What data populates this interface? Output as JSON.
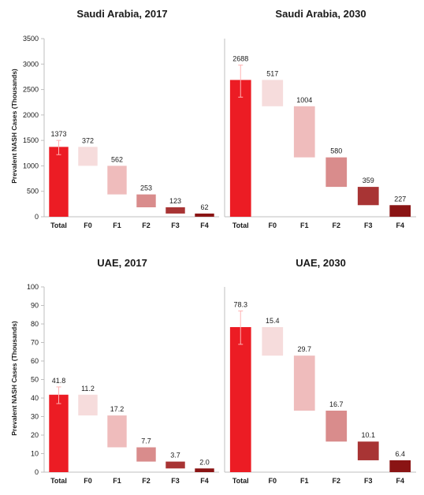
{
  "chart_data": [
    {
      "type": "bar",
      "title": "Saudi Arabia, 2017",
      "ylabel": "Prevalent NASH Cases (Thousands)",
      "ylim": [
        0,
        3500
      ],
      "yticks": [
        0,
        500,
        1000,
        1500,
        2000,
        2500,
        3000,
        3500
      ],
      "categories": [
        "Total",
        "F0",
        "F1",
        "F2",
        "F3",
        "F4"
      ],
      "values": [
        1373,
        372,
        562,
        253,
        123,
        62
      ],
      "value_labels": [
        "1373",
        "372",
        "562",
        "253",
        "123",
        "62"
      ],
      "error_bar_total": [
        1220,
        1500
      ],
      "colors": [
        "#ec1c24",
        "#f6dcdc",
        "#efbcbc",
        "#d98c8c",
        "#a83434",
        "#8a1414"
      ]
    },
    {
      "type": "bar",
      "title": "Saudi Arabia, 2030",
      "ylabel": "",
      "ylim": [
        0,
        3500
      ],
      "yticks": [],
      "categories": [
        "Total",
        "F0",
        "F1",
        "F2",
        "F3",
        "F4"
      ],
      "values": [
        2688,
        517,
        1004,
        580,
        359,
        227
      ],
      "value_labels": [
        "2688",
        "517",
        "1004",
        "580",
        "359",
        "227"
      ],
      "error_bar_total": [
        2350,
        2980
      ],
      "colors": [
        "#ec1c24",
        "#f6dcdc",
        "#efbcbc",
        "#d98c8c",
        "#a83434",
        "#8a1414"
      ]
    },
    {
      "type": "bar",
      "title": "UAE, 2017",
      "ylabel": "Prevalent NASH Cases (Thousands)",
      "ylim": [
        0,
        100
      ],
      "yticks": [
        0,
        10,
        20,
        30,
        40,
        50,
        60,
        70,
        80,
        90,
        100
      ],
      "categories": [
        "Total",
        "F0",
        "F1",
        "F2",
        "F3",
        "F4"
      ],
      "values": [
        41.8,
        11.2,
        17.2,
        7.7,
        3.7,
        2.0
      ],
      "value_labels": [
        "41.8",
        "11.2",
        "17.2",
        "7.7",
        "3.7",
        "2.0"
      ],
      "error_bar_total": [
        37,
        46
      ],
      "colors": [
        "#ec1c24",
        "#f6dcdc",
        "#efbcbc",
        "#d98c8c",
        "#a83434",
        "#8a1414"
      ]
    },
    {
      "type": "bar",
      "title": "UAE, 2030",
      "ylabel": "",
      "ylim": [
        0,
        100
      ],
      "yticks": [],
      "categories": [
        "Total",
        "F0",
        "F1",
        "F2",
        "F3",
        "F4"
      ],
      "values": [
        78.3,
        15.4,
        29.7,
        16.7,
        10.1,
        6.4
      ],
      "value_labels": [
        "78.3",
        "15.4",
        "29.7",
        "16.7",
        "10.1",
        "6.4"
      ],
      "error_bar_total": [
        69,
        87
      ],
      "colors": [
        "#ec1c24",
        "#f6dcdc",
        "#efbcbc",
        "#d98c8c",
        "#a83434",
        "#8a1414"
      ]
    }
  ]
}
